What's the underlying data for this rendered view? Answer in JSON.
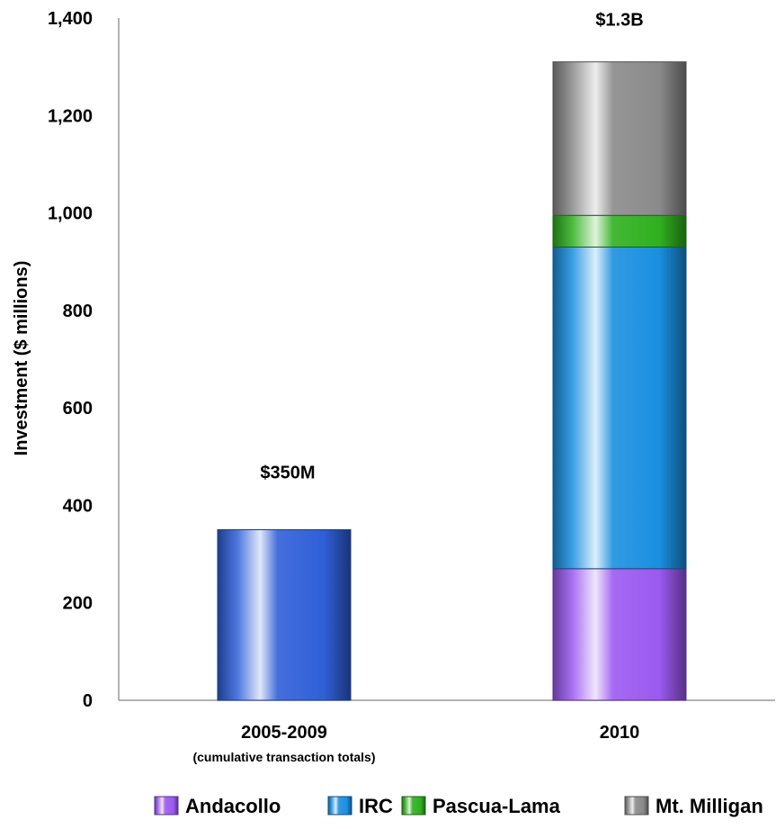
{
  "chart_data": {
    "type": "bar",
    "stacked": true,
    "ylabel": "Investment ($ millions)",
    "ylim": [
      0,
      1400
    ],
    "yticks": [
      0,
      200,
      400,
      600,
      800,
      1000,
      1200,
      1400
    ],
    "ytick_labels": [
      "0",
      "200",
      "400",
      "600",
      "800",
      "1,000",
      "1,200",
      "1,400"
    ],
    "grid": false,
    "legend_position": "bottom",
    "categories": [
      {
        "label": "2005-2009",
        "sublabel": "(cumulative transaction totals)",
        "total_label": "$350M"
      },
      {
        "label": "2010",
        "sublabel": "",
        "total_label": "$1.3B"
      }
    ],
    "first_bar": {
      "value": 350,
      "color": "#2f5fd8"
    },
    "series": [
      {
        "name": "Andacollo",
        "color": "#9b59f0",
        "values": [
          0,
          270
        ]
      },
      {
        "name": "IRC",
        "color": "#1a8fe0",
        "values": [
          0,
          660
        ]
      },
      {
        "name": "Pascua-Lama",
        "color": "#2fb01e",
        "values": [
          0,
          65
        ]
      },
      {
        "name": "Mt. Milligan",
        "color": "#8a8a8a",
        "values": [
          0,
          315
        ]
      }
    ]
  }
}
